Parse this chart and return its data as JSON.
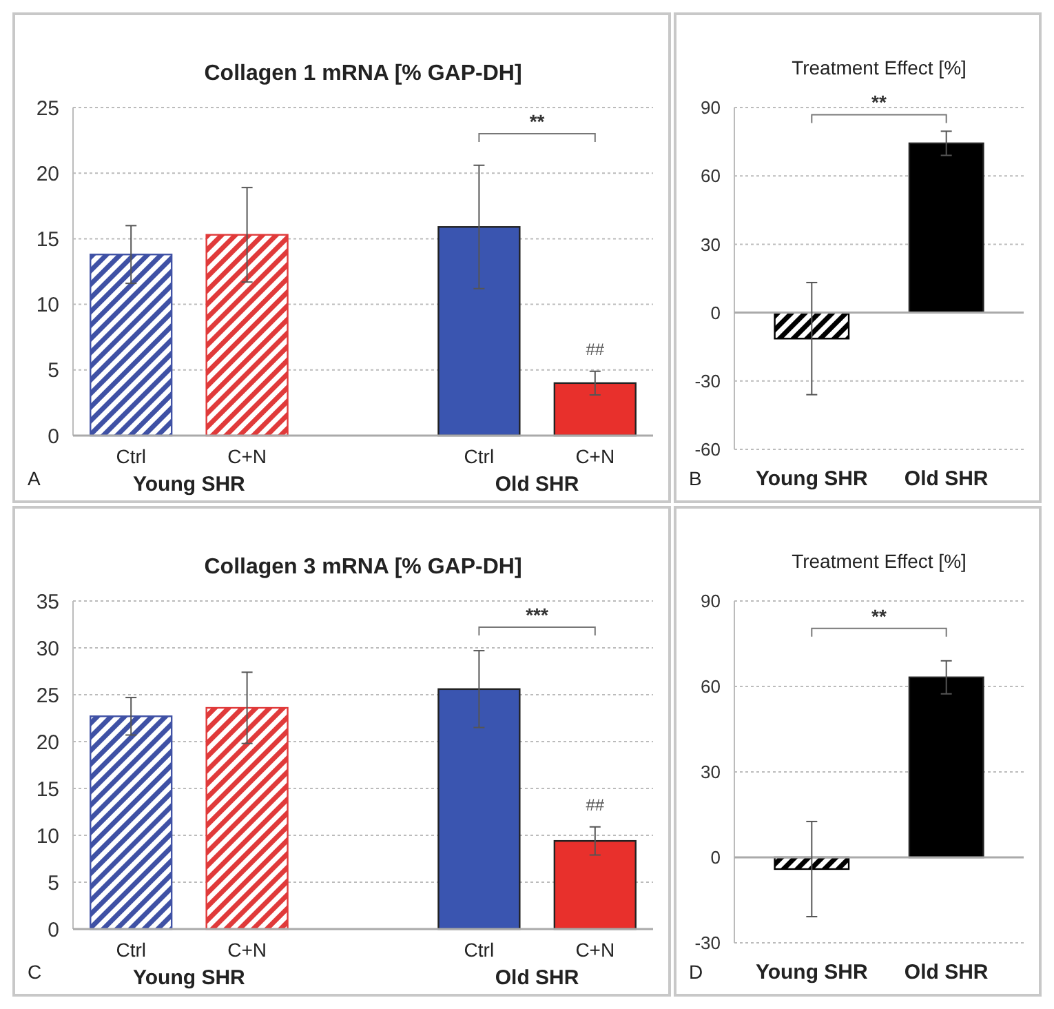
{
  "chart_data": [
    {
      "type": "bar",
      "title": "Collagen 1 mRNA [% GAP-DH]",
      "categories": [
        "Ctrl",
        "C+N",
        null,
        "Ctrl",
        "C+N"
      ],
      "values": [
        13.8,
        15.3,
        null,
        15.9,
        4.0
      ],
      "errors": [
        2.2,
        3.6,
        null,
        4.7,
        0.9
      ],
      "colors": [
        "#3f51a5",
        "#e03a3a",
        "#ffffff",
        "#3a55b0",
        "#e8302c"
      ],
      "ylim": [
        0,
        25
      ],
      "yticks": [
        0,
        5,
        10,
        15,
        20,
        25
      ],
      "grid": "y",
      "annotations": [
        "A",
        "Young SHR",
        "Old SHR",
        "**",
        "##"
      ]
    },
    {
      "type": "bar",
      "title": "Treatment Effect [%]",
      "categories": [
        "Young SHR",
        "Old SHR"
      ],
      "values": [
        -11.4,
        74.3
      ],
      "errors": [
        24.6,
        5.3
      ],
      "colors": [
        "#000000",
        "#000000"
      ],
      "ylim": [
        -60,
        90
      ],
      "yticks": [
        -60,
        -30,
        0,
        30,
        60,
        90
      ],
      "grid": "y",
      "annotations": [
        "B",
        "**"
      ]
    },
    {
      "type": "bar",
      "title": "Collagen 3 mRNA [% GAP-DH]",
      "categories": [
        "Ctrl",
        "C+N",
        null,
        "Ctrl",
        "C+N"
      ],
      "values": [
        22.7,
        23.6,
        null,
        25.6,
        9.4
      ],
      "errors": [
        2.0,
        3.8,
        null,
        4.1,
        1.5
      ],
      "colors": [
        "#3f51a5",
        "#e03a3a",
        "#ffffff",
        "#3a55b0",
        "#e8302c"
      ],
      "ylim": [
        0,
        35
      ],
      "yticks": [
        0,
        5,
        10,
        15,
        20,
        25,
        30,
        35
      ],
      "grid": "y",
      "annotations": [
        "C",
        "Young SHR",
        "Old SHR",
        "***",
        "##"
      ]
    },
    {
      "type": "bar",
      "title": "Treatment Effect [%]",
      "categories": [
        "Young SHR",
        "Old SHR"
      ],
      "values": [
        -4.1,
        63.2
      ],
      "errors": [
        16.7,
        5.8
      ],
      "colors": [
        "#000000",
        "#000000"
      ],
      "ylim": [
        -30,
        90
      ],
      "yticks": [
        -30,
        0,
        30,
        60,
        90
      ],
      "grid": "y",
      "annotations": [
        "D",
        "**"
      ]
    }
  ]
}
